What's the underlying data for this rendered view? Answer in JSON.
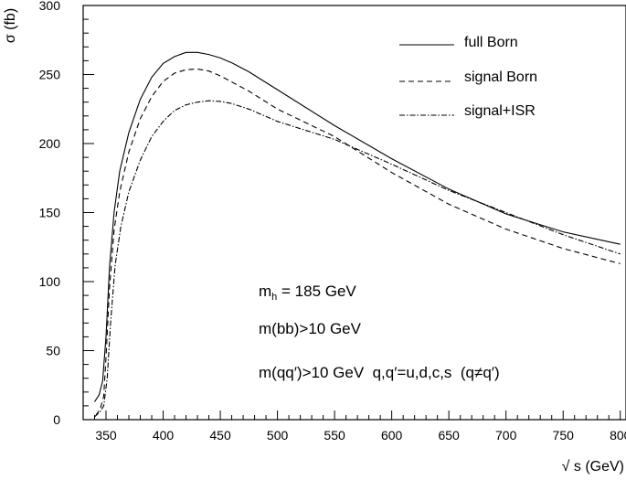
{
  "chart_data": {
    "type": "line",
    "xlabel": "√ s (GeV)",
    "ylabel": "σ (fb)",
    "xlim": [
      330,
      805
    ],
    "ylim": [
      0,
      300
    ],
    "xticks": [
      350,
      400,
      450,
      500,
      550,
      600,
      650,
      700,
      750,
      800
    ],
    "yticks": [
      0,
      50,
      100,
      150,
      200,
      250,
      300
    ],
    "legend_position": "top-right",
    "series": [
      {
        "name": "full Born",
        "style": "solid",
        "points": [
          [
            340,
            13
          ],
          [
            344,
            18
          ],
          [
            347,
            28
          ],
          [
            350,
            60
          ],
          [
            353,
            110
          ],
          [
            357,
            150
          ],
          [
            362,
            180
          ],
          [
            370,
            208
          ],
          [
            380,
            232
          ],
          [
            390,
            248
          ],
          [
            400,
            258
          ],
          [
            410,
            263
          ],
          [
            420,
            266
          ],
          [
            430,
            266
          ],
          [
            440,
            264.5
          ],
          [
            450,
            262
          ],
          [
            460,
            258.5
          ],
          [
            475,
            252
          ],
          [
            500,
            239
          ],
          [
            550,
            213
          ],
          [
            600,
            189
          ],
          [
            650,
            167
          ],
          [
            700,
            149
          ],
          [
            750,
            136
          ],
          [
            800,
            127
          ]
        ]
      },
      {
        "name": "signal Born",
        "style": "dashed",
        "points": [
          [
            341,
            3
          ],
          [
            345,
            8
          ],
          [
            348,
            17
          ],
          [
            350,
            45
          ],
          [
            353,
            95
          ],
          [
            357,
            137
          ],
          [
            362,
            165
          ],
          [
            370,
            194
          ],
          [
            380,
            218
          ],
          [
            390,
            234
          ],
          [
            400,
            245
          ],
          [
            410,
            251
          ],
          [
            420,
            253.5
          ],
          [
            430,
            254
          ],
          [
            440,
            252.5
          ],
          [
            450,
            249
          ],
          [
            475,
            238
          ],
          [
            500,
            225
          ],
          [
            550,
            205
          ],
          [
            600,
            179
          ],
          [
            650,
            156
          ],
          [
            700,
            138
          ],
          [
            750,
            124
          ],
          [
            800,
            113
          ]
        ]
      },
      {
        "name": "signal+ISR",
        "style": "dashdot",
        "points": [
          [
            340,
            2
          ],
          [
            345,
            6
          ],
          [
            348,
            10
          ],
          [
            351,
            30
          ],
          [
            354,
            70
          ],
          [
            358,
            112
          ],
          [
            363,
            140
          ],
          [
            370,
            165
          ],
          [
            380,
            188
          ],
          [
            390,
            205
          ],
          [
            400,
            216
          ],
          [
            410,
            224
          ],
          [
            420,
            228
          ],
          [
            430,
            230
          ],
          [
            440,
            231
          ],
          [
            450,
            230.5
          ],
          [
            460,
            229
          ],
          [
            475,
            225
          ],
          [
            500,
            216
          ],
          [
            550,
            203
          ],
          [
            600,
            185
          ],
          [
            650,
            166
          ],
          [
            700,
            150
          ],
          [
            750,
            134
          ],
          [
            800,
            120
          ]
        ]
      }
    ],
    "annotations": {
      "mass_main": "m",
      "mass_sub": "h",
      "mass_rest": " = 185 GeV",
      "cut_bb": "m(bb)>10 GeV",
      "cut_qq_left": "m(qq′)>10 GeV  q,q′=u,d,c,s  (q",
      "cut_qq_neq": "≠",
      "cut_qq_right": "q′)"
    }
  },
  "colors": {
    "line": "#000000",
    "background": "#ffffff"
  }
}
